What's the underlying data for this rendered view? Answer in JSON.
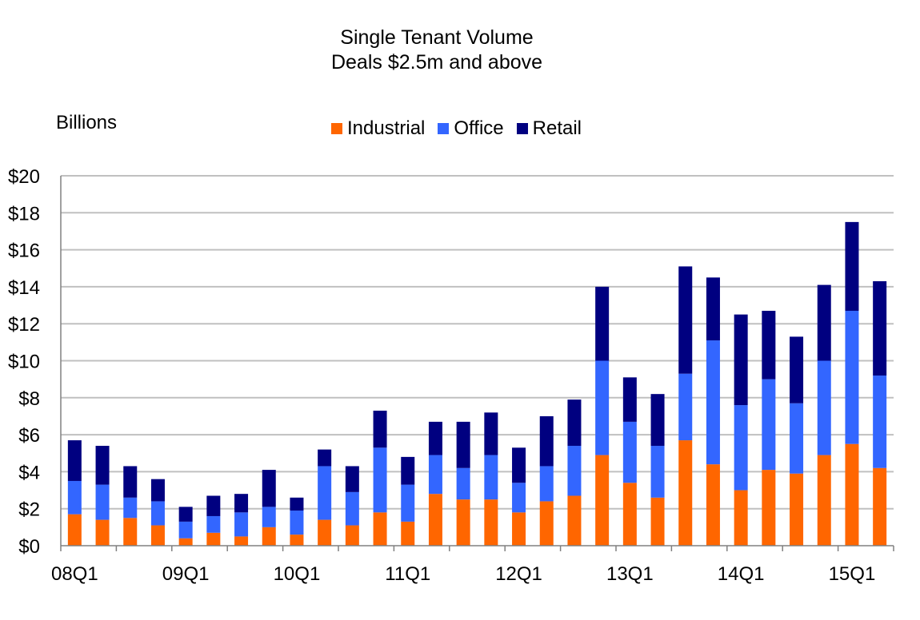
{
  "chart_data": {
    "type": "bar",
    "stacked": true,
    "title": "Single Tenant Volume",
    "subtitle": "Deals $2.5m and above",
    "ylabel": "Billions",
    "ylim": [
      0,
      20
    ],
    "yticks": [
      "$0",
      "$2",
      "$4",
      "$6",
      "$8",
      "$10",
      "$12",
      "$14",
      "$16",
      "$18",
      "$20"
    ],
    "ytick_values": [
      0,
      2,
      4,
      6,
      8,
      10,
      12,
      14,
      16,
      18,
      20
    ],
    "xtick_labels": [
      "08Q1",
      "09Q1",
      "10Q1",
      "11Q1",
      "12Q1",
      "13Q1",
      "14Q1",
      "15Q1"
    ],
    "grid": true,
    "legend_position": "top-center",
    "categories": [
      "08Q1",
      "08Q2",
      "08Q3",
      "08Q4",
      "09Q1",
      "09Q2",
      "09Q3",
      "09Q4",
      "10Q1",
      "10Q2",
      "10Q3",
      "10Q4",
      "11Q1",
      "11Q2",
      "11Q3",
      "11Q4",
      "12Q1",
      "12Q2",
      "12Q3",
      "12Q4",
      "13Q1",
      "13Q2",
      "13Q3",
      "13Q4",
      "14Q1",
      "14Q2",
      "14Q3",
      "14Q4",
      "15Q1",
      "15Q2"
    ],
    "series": [
      {
        "name": "Industrial",
        "color": "#ff6600",
        "values": [
          1.7,
          1.4,
          1.5,
          1.1,
          0.4,
          0.7,
          0.5,
          1.0,
          0.6,
          1.4,
          1.1,
          1.8,
          1.3,
          2.8,
          2.5,
          2.5,
          1.8,
          2.4,
          2.7,
          4.9,
          3.4,
          2.6,
          5.7,
          4.4,
          3.0,
          4.1,
          3.9,
          4.9,
          5.5,
          4.2
        ]
      },
      {
        "name": "Office",
        "color": "#3366ff",
        "values": [
          1.8,
          1.9,
          1.1,
          1.3,
          0.9,
          0.9,
          1.3,
          1.1,
          1.3,
          2.9,
          1.8,
          3.5,
          2.0,
          2.1,
          1.7,
          2.4,
          1.6,
          1.9,
          2.7,
          5.1,
          3.3,
          2.8,
          3.6,
          6.7,
          4.6,
          4.9,
          3.8,
          5.1,
          7.2,
          5.0
        ]
      },
      {
        "name": "Retail",
        "color": "#000080",
        "values": [
          2.2,
          2.1,
          1.7,
          1.2,
          0.8,
          1.1,
          1.0,
          2.0,
          0.7,
          0.9,
          1.4,
          2.0,
          1.5,
          1.8,
          2.5,
          2.3,
          1.9,
          2.7,
          2.5,
          4.0,
          2.4,
          2.8,
          5.8,
          3.4,
          4.9,
          3.7,
          3.6,
          4.1,
          4.8,
          5.1
        ]
      }
    ]
  }
}
